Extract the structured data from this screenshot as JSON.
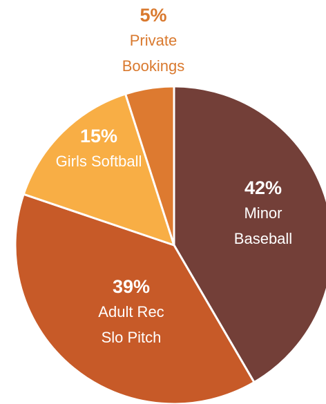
{
  "chart_data": {
    "type": "pie",
    "categories": [
      "Minor Baseball",
      "Adult Rec Slo Pitch",
      "Girls Softball",
      "Private Bookings"
    ],
    "values": [
      42,
      39,
      15,
      5
    ],
    "value_labels": [
      "42%",
      "39%",
      "15%",
      "5%"
    ],
    "colors": [
      "#733f38",
      "#c75a28",
      "#f8ae45",
      "#dd7a30"
    ],
    "label_colors": [
      "#ffffff",
      "#ffffff",
      "#ffffff",
      "#d9792e"
    ]
  }
}
